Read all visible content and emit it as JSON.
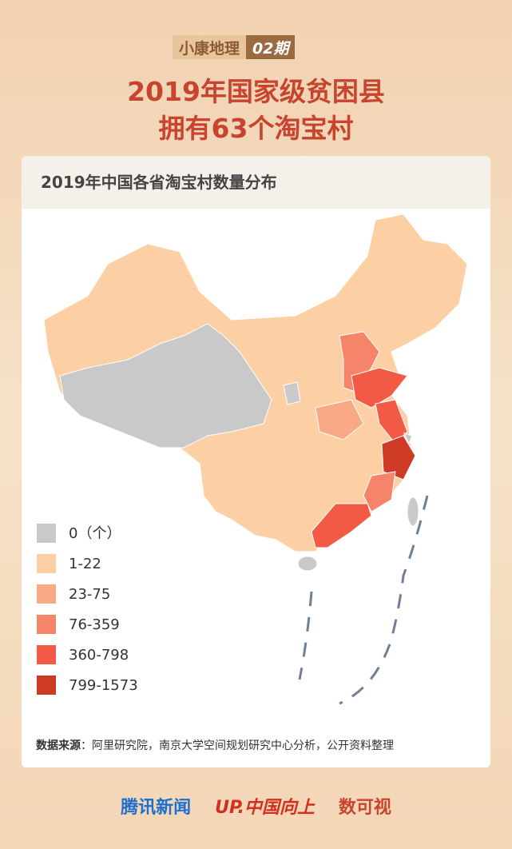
{
  "header": {
    "series_tag": "小康地理",
    "issue": "02期",
    "title_line1": "2019年国家级贫困县",
    "title_line2": "拥有63个淘宝村"
  },
  "card": {
    "title": "2019年中国各省淘宝村数量分布",
    "source_label": "数据来源",
    "source_text": "：阿里研究院，南京大学空间规划研究中心分析，公开资料整理"
  },
  "legend": [
    {
      "label": "0（个）",
      "color": "#c9c9c9"
    },
    {
      "label": "1-22",
      "color": "#fcd0a4"
    },
    {
      "label": "23-75",
      "color": "#f9a985"
    },
    {
      "label": "76-359",
      "color": "#f6846b"
    },
    {
      "label": "360-798",
      "color": "#f25a45"
    },
    {
      "label": "799-1573",
      "color": "#cd3a26"
    }
  ],
  "footer": {
    "brand1": "腾讯新闻",
    "brand2": "UP.中国向上",
    "brand3": "数可视"
  }
}
